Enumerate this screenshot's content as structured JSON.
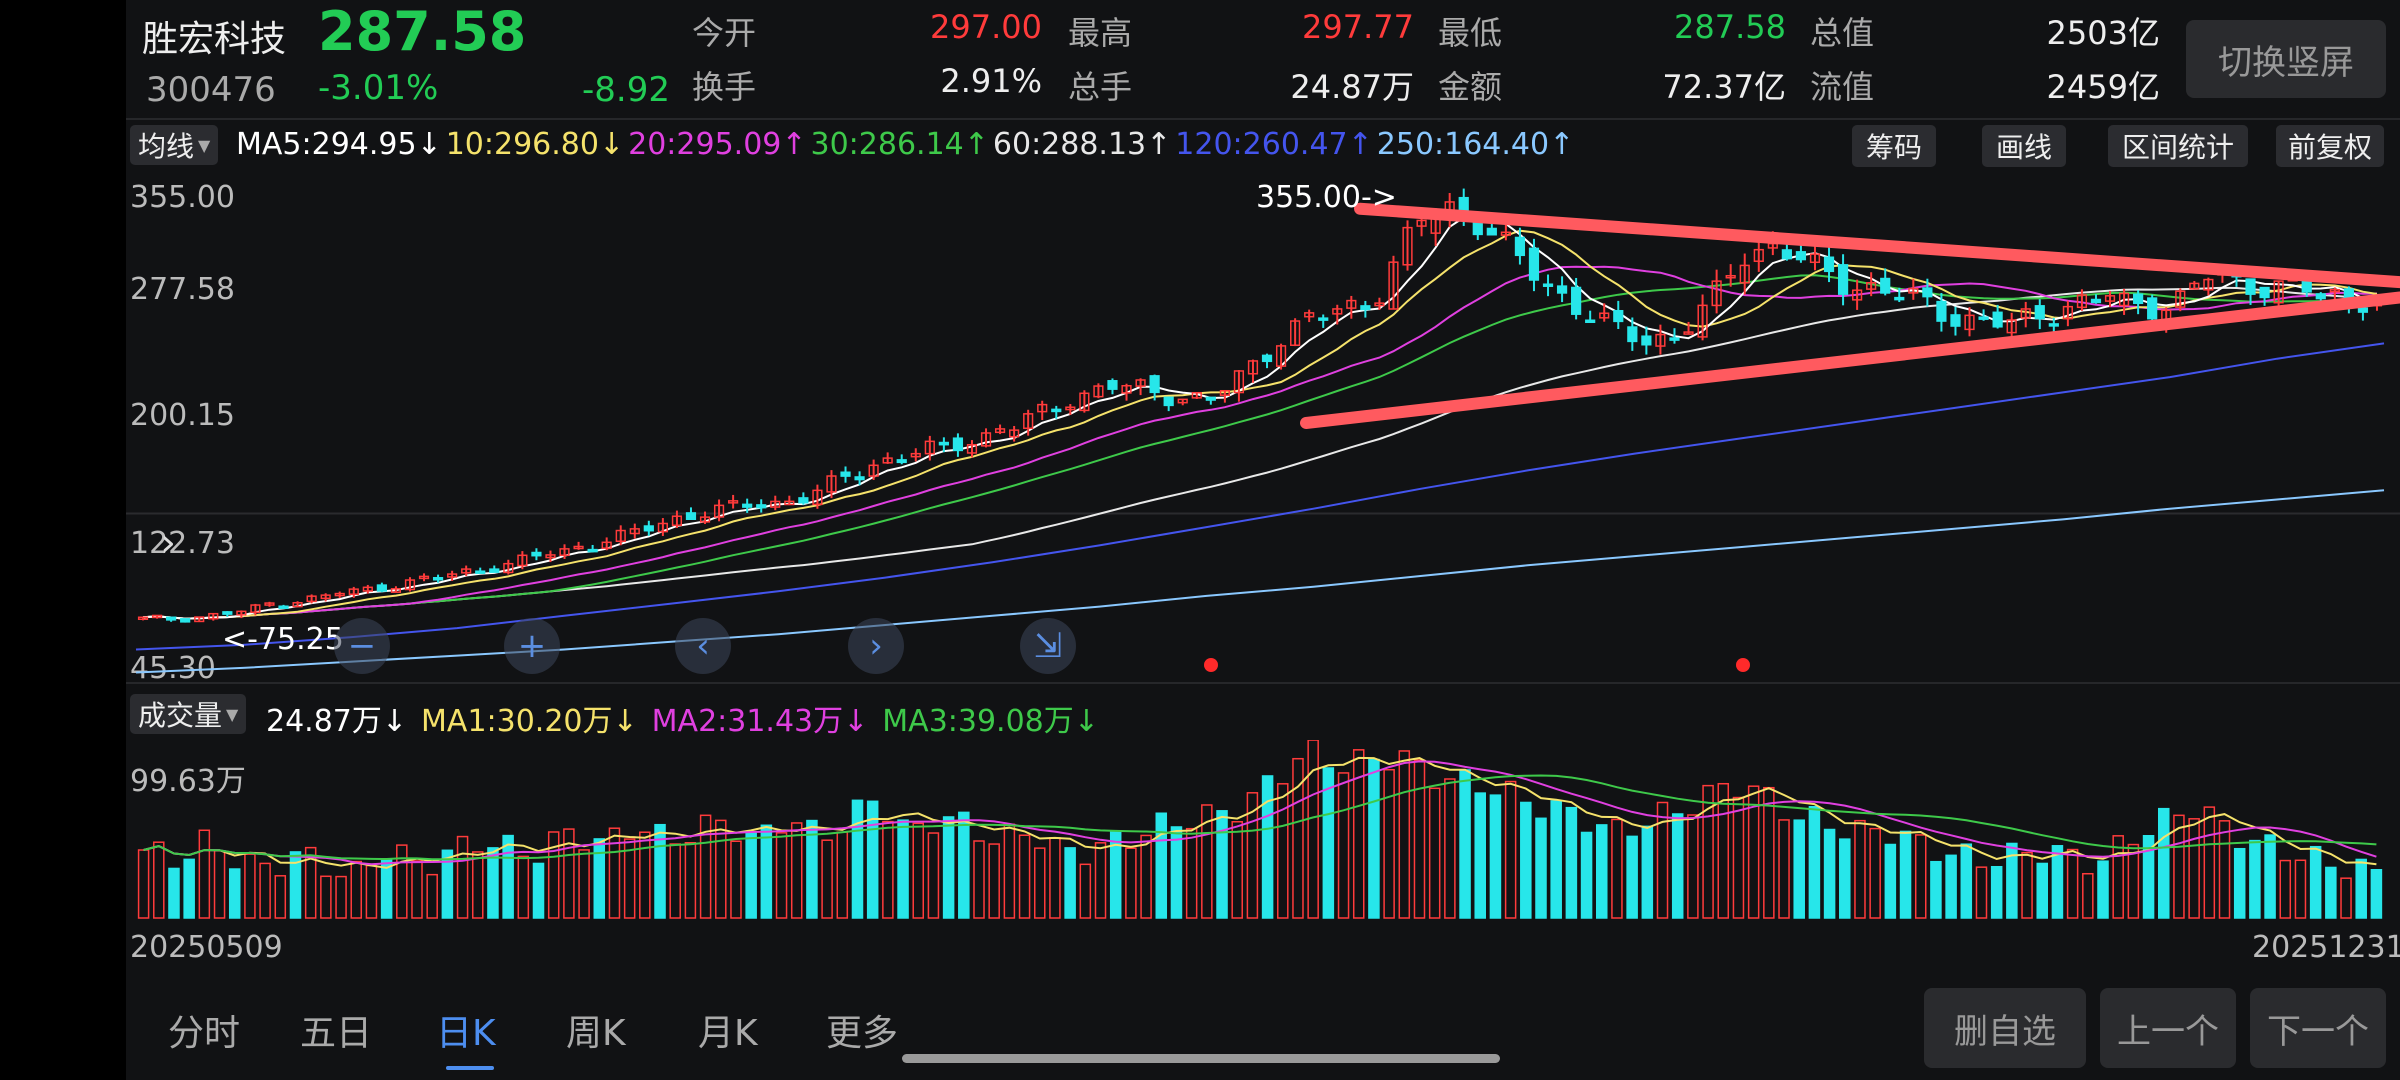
{
  "header": {
    "name": "胜宏科技",
    "price": "287.58",
    "code": "300476",
    "change_pct": "-3.01%",
    "change_amt": "-8.92",
    "stats": [
      {
        "label": "今开",
        "value": "297.00",
        "color": "#ff3b3b"
      },
      {
        "label": "最高",
        "value": "297.77",
        "color": "#ff3b3b"
      },
      {
        "label": "最低",
        "value": "287.58",
        "color": "#22cc55"
      },
      {
        "label": "总值",
        "value": "2503亿",
        "color": "#eeeeee"
      },
      {
        "label": "换手",
        "value": "2.91%",
        "color": "#eeeeee"
      },
      {
        "label": "总手",
        "value": "24.87万",
        "color": "#eeeeee"
      },
      {
        "label": "金额",
        "value": "72.37亿",
        "color": "#eeeeee"
      },
      {
        "label": "流值",
        "value": "2459亿",
        "color": "#eeeeee"
      }
    ],
    "portrait_button": "切换竖屏"
  },
  "ma_bar": {
    "selector": "均线",
    "items": [
      {
        "text": "MA5:294.95↓",
        "color": "#ffffff"
      },
      {
        "text": "10:296.80↓",
        "color": "#f5e26b"
      },
      {
        "text": "20:295.09↑",
        "color": "#e040e0"
      },
      {
        "text": "30:286.14↑",
        "color": "#3ec94a"
      },
      {
        "text": "60:288.13↑",
        "color": "#e8e8e8"
      },
      {
        "text": "120:260.47↑",
        "color": "#4455ee"
      },
      {
        "text": "250:164.40↑",
        "color": "#8ac8ff"
      }
    ],
    "buttons": [
      "筹码",
      "画线",
      "区间统计",
      "前复权"
    ]
  },
  "price_axis": [
    "355.00",
    "277.58",
    "200.15",
    "122.73",
    "45.30"
  ],
  "annotations": {
    "high": "355.00",
    "low": "75.25"
  },
  "volume_bar": {
    "selector": "成交量",
    "items": [
      {
        "text": "24.87万↓",
        "color": "#ffffff"
      },
      {
        "text": "MA1:30.20万↓",
        "color": "#f5e26b"
      },
      {
        "text": "MA2:31.43万↓",
        "color": "#e040e0"
      },
      {
        "text": "MA3:39.08万↓",
        "color": "#3ec94a"
      }
    ],
    "axis_max": "99.63万"
  },
  "dates": {
    "start": "20250509",
    "end": "20251231"
  },
  "tabs": [
    {
      "label": "分时",
      "active": false
    },
    {
      "label": "五日",
      "active": false
    },
    {
      "label": "日K",
      "active": true
    },
    {
      "label": "周K",
      "active": false
    },
    {
      "label": "月K",
      "active": false
    },
    {
      "label": "更多",
      "active": false
    }
  ],
  "bottom_buttons": [
    "删自选",
    "上一个",
    "下一个"
  ],
  "chart_data": {
    "type": "candlestick",
    "x_range": [
      "20250509",
      "20251231"
    ],
    "price_range": [
      45.3,
      355.0
    ],
    "price_ticks": [
      355.0,
      277.58,
      200.15,
      122.73,
      45.3
    ],
    "period_high": 355.0,
    "period_low": 75.25,
    "close_path": [
      80,
      80,
      82,
      85,
      90,
      93,
      97,
      100,
      104,
      108,
      112,
      116,
      122,
      126,
      132,
      138,
      146,
      150,
      154,
      156,
      160,
      172,
      182,
      188,
      192,
      198,
      204,
      215,
      225,
      232,
      230,
      226,
      222,
      240,
      262,
      276,
      282,
      290,
      330,
      350,
      342,
      320,
      300,
      285,
      270,
      262,
      266,
      285,
      318,
      325,
      310,
      300,
      296,
      290,
      280,
      275,
      272,
      280,
      286,
      288,
      285,
      286,
      305,
      300,
      296,
      295,
      290,
      288
    ],
    "ma250_path": [
      45,
      48,
      52,
      56,
      60,
      65,
      70,
      76,
      82,
      88,
      95,
      101,
      108,
      115,
      121,
      127,
      133,
      139,
      145,
      152,
      158,
      164
    ],
    "ma120_path": [
      60,
      63,
      68,
      74,
      82,
      90,
      98,
      107,
      117,
      128,
      140,
      152,
      165,
      177,
      188,
      198,
      208,
      218,
      228,
      238,
      250,
      260
    ],
    "ma_latest": {
      "MA5": 294.95,
      "MA10": 296.8,
      "MA20": 295.09,
      "MA30": 286.14,
      "MA60": 288.13,
      "MA120": 260.47,
      "MA250": 164.4
    },
    "volume": {
      "latest": "24.87万",
      "axis_max": "99.63万",
      "ma": {
        "MA1": "30.20万",
        "MA2": "31.43万",
        "MA3": "39.08万"
      },
      "values": [
        40,
        34,
        44,
        36,
        28,
        38,
        30,
        25,
        42,
        30,
        38,
        46,
        40,
        38,
        52,
        42,
        55,
        46,
        50,
        58,
        44,
        60,
        48,
        56,
        72,
        48,
        60,
        54,
        45,
        52,
        38,
        40,
        46,
        52,
        58,
        60,
        66,
        82,
        99,
        90,
        92,
        96,
        85,
        80,
        78,
        70,
        64,
        60,
        50,
        56,
        62,
        70,
        80,
        72,
        60,
        56,
        50,
        52,
        44,
        38,
        34,
        36,
        40,
        36,
        32,
        48,
        56,
        66,
        54,
        44,
        40,
        34,
        30,
        26
      ]
    },
    "trendlines": [
      {
        "from_price": 348,
        "to_price": 300
      },
      {
        "from_price": 208,
        "to_price": 290
      }
    ],
    "colors": {
      "up": "#ff3b3b",
      "down": "#27e6ea",
      "trendline": "#ff5a5f"
    }
  }
}
